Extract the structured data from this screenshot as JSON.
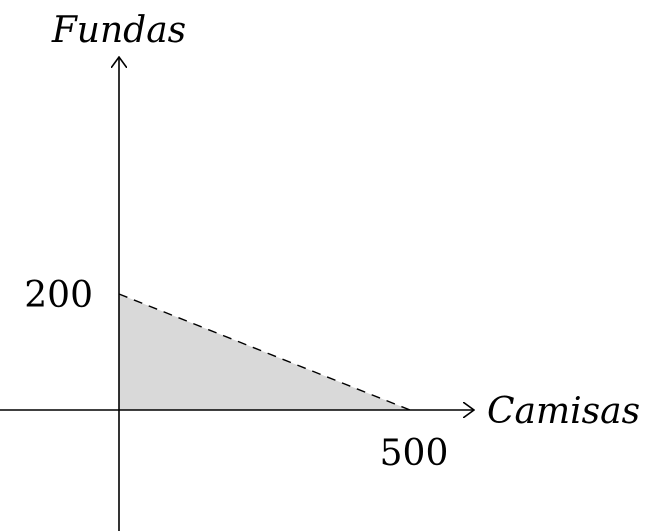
{
  "chart_data": {
    "type": "area",
    "x_axis_label": "Camisas",
    "y_axis_label": "Fundas",
    "x_tick_labels": [
      "500"
    ],
    "y_tick_labels": [
      "200"
    ],
    "constraint_line": {
      "points": [
        {
          "x": 0,
          "y": 200
        },
        {
          "x": 500,
          "y": 0
        }
      ],
      "style": "dashed"
    },
    "feasible_region": [
      {
        "x": 0,
        "y": 0
      },
      {
        "x": 0,
        "y": 200
      },
      {
        "x": 500,
        "y": 0
      }
    ],
    "colors": {
      "region_fill": "#d9d9d9",
      "axis": "#000000",
      "constraint_line": "#000000"
    },
    "grid": false
  }
}
